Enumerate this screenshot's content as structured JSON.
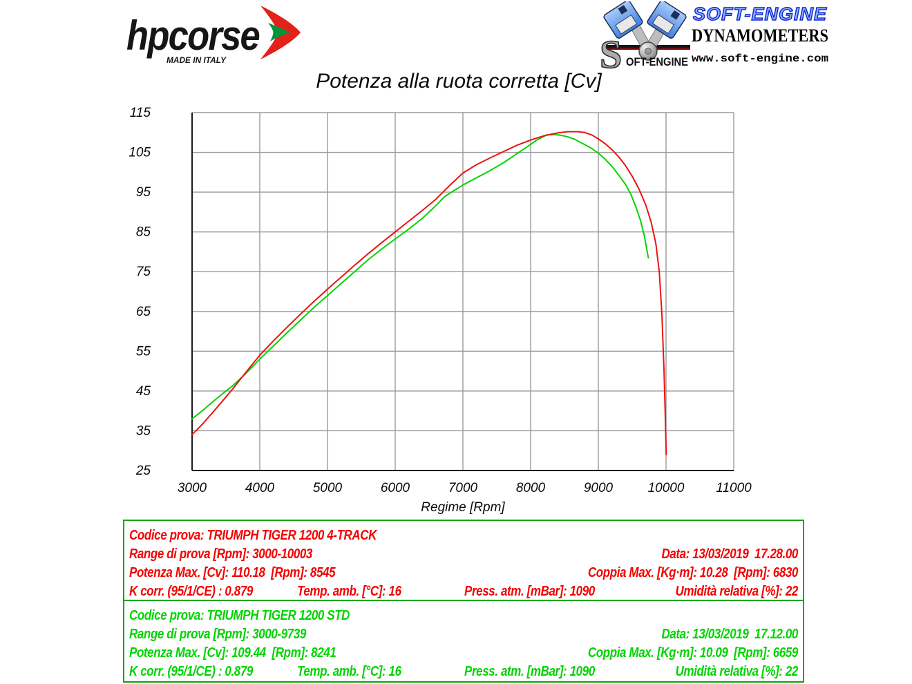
{
  "branding": {
    "hpcorse": {
      "name": "hpcorse",
      "tagline": "MADE IN ITALY"
    },
    "softengine": {
      "emblem_s": "S",
      "emblem_text": "OFT-ENGINE",
      "title": "SOFT-ENGINE",
      "subtitle": "DYNAMOMETERS",
      "url": "www.soft-engine.com"
    }
  },
  "chart_data": {
    "type": "line",
    "title": "Potenza alla ruota corretta [Cv]",
    "xlabel": "Regime [Rpm]",
    "ylabel": "",
    "xlim": [
      3000,
      11000
    ],
    "ylim": [
      25,
      115
    ],
    "x_ticks": [
      3000,
      4000,
      5000,
      6000,
      7000,
      8000,
      9000,
      10000,
      11000
    ],
    "y_ticks": [
      25,
      35,
      45,
      55,
      65,
      75,
      85,
      95,
      105,
      115
    ],
    "grid": true,
    "legend_position": "none",
    "series": [
      {
        "name": "TRIUMPH TIGER 1200 STD",
        "color": "#00d400",
        "points": [
          [
            3000,
            38
          ],
          [
            3150,
            40
          ],
          [
            3300,
            42.2
          ],
          [
            3450,
            44.3
          ],
          [
            3600,
            46.3
          ],
          [
            3800,
            49.5
          ],
          [
            4000,
            53
          ],
          [
            4200,
            56.3
          ],
          [
            4400,
            59.6
          ],
          [
            4600,
            62.8
          ],
          [
            4800,
            66
          ],
          [
            5000,
            69
          ],
          [
            5200,
            72
          ],
          [
            5400,
            75
          ],
          [
            5600,
            78
          ],
          [
            5800,
            80.7
          ],
          [
            6000,
            83.2
          ],
          [
            6200,
            85.7
          ],
          [
            6400,
            88.4
          ],
          [
            6600,
            91.6
          ],
          [
            6724,
            93.8
          ],
          [
            6850,
            95.2
          ],
          [
            7000,
            96.8
          ],
          [
            7200,
            98.6
          ],
          [
            7400,
            100.4
          ],
          [
            7600,
            102.4
          ],
          [
            7800,
            104.7
          ],
          [
            8000,
            107
          ],
          [
            8100,
            108.2
          ],
          [
            8241,
            109.4
          ],
          [
            8350,
            109.5
          ],
          [
            8450,
            109.3
          ],
          [
            8550,
            108.9
          ],
          [
            8650,
            108.3
          ],
          [
            8750,
            107.4
          ],
          [
            8900,
            106
          ],
          [
            9000,
            104.8
          ],
          [
            9100,
            103.3
          ],
          [
            9200,
            101.5
          ],
          [
            9300,
            99.3
          ],
          [
            9400,
            97
          ],
          [
            9480,
            94.5
          ],
          [
            9550,
            91.5
          ],
          [
            9620,
            88
          ],
          [
            9680,
            84
          ],
          [
            9739,
            78.5
          ]
        ]
      },
      {
        "name": "TRIUMPH TIGER 1200 4-TRACK",
        "color": "#ee1111",
        "points": [
          [
            3000,
            34
          ],
          [
            3150,
            36.6
          ],
          [
            3300,
            39.5
          ],
          [
            3450,
            42.5
          ],
          [
            3600,
            45.5
          ],
          [
            3800,
            49.8
          ],
          [
            4000,
            54
          ],
          [
            4200,
            57.6
          ],
          [
            4400,
            61
          ],
          [
            4600,
            64.3
          ],
          [
            4800,
            67.5
          ],
          [
            5000,
            70.6
          ],
          [
            5200,
            73.6
          ],
          [
            5400,
            76.6
          ],
          [
            5600,
            79.5
          ],
          [
            5800,
            82.3
          ],
          [
            6000,
            85
          ],
          [
            6200,
            87.7
          ],
          [
            6400,
            90.4
          ],
          [
            6600,
            93.2
          ],
          [
            6800,
            96.6
          ],
          [
            7000,
            99.8
          ],
          [
            7200,
            101.9
          ],
          [
            7400,
            103.6
          ],
          [
            7600,
            105.2
          ],
          [
            7800,
            106.8
          ],
          [
            8000,
            108.1
          ],
          [
            8200,
            109.2
          ],
          [
            8400,
            109.9
          ],
          [
            8545,
            110.2
          ],
          [
            8700,
            110.2
          ],
          [
            8800,
            110
          ],
          [
            8900,
            109.4
          ],
          [
            9000,
            108.4
          ],
          [
            9100,
            107.2
          ],
          [
            9200,
            105.7
          ],
          [
            9300,
            103.9
          ],
          [
            9400,
            101.7
          ],
          [
            9500,
            99
          ],
          [
            9600,
            95.8
          ],
          [
            9700,
            91.8
          ],
          [
            9780,
            87.5
          ],
          [
            9850,
            82
          ],
          [
            9900,
            75
          ],
          [
            9940,
            64
          ],
          [
            9970,
            50
          ],
          [
            9990,
            38
          ],
          [
            10003,
            29
          ]
        ]
      }
    ]
  },
  "info_boxes": {
    "track": {
      "codice": "Codice prova: TRIUMPH TIGER 1200 4-TRACK",
      "range": "Range di prova [Rpm]: 3000-10003",
      "data": "Data: 13/03/2019  17.28.00",
      "potenza": "Potenza Max. [Cv]: 110.18  [Rpm]: 8545",
      "coppia": "Coppia Max. [Kg·m]: 10.28  [Rpm]: 6830",
      "kcorr": "K corr. (95/1/CE) : 0.879",
      "temp": "Temp. amb. [°C]: 16",
      "press": "Press. atm. [mBar]: 1090",
      "umidita": "Umidità relativa [%]: 22"
    },
    "std": {
      "codice": "Codice prova: TRIUMPH TIGER 1200 STD",
      "range": "Range di prova [Rpm]: 3000-9739",
      "data": "Data: 13/03/2019  17.12.00",
      "potenza": "Potenza Max. [Cv]: 109.44  [Rpm]: 8241",
      "coppia": "Coppia Max. [Kg·m]: 10.09  [Rpm]: 6659",
      "kcorr": "K corr. (95/1/CE) : 0.879",
      "temp": "Temp. amb. [°C]: 16",
      "press": "Press. atm. [mBar]: 1090",
      "umidita": "Umidità relativa [%]: 22"
    }
  },
  "colors": {
    "curve_4track": "#ee1111",
    "curve_std": "#00d400",
    "box_border": "#00a800",
    "grid": "#9a9a9a"
  }
}
